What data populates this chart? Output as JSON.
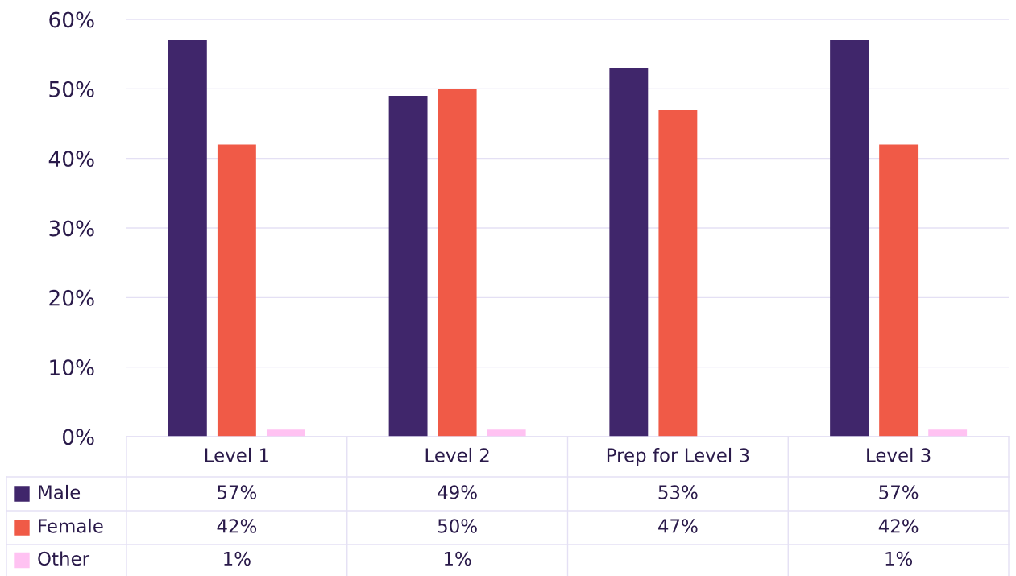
{
  "chart_data": {
    "type": "bar",
    "categories": [
      "Level 1",
      "Level 2",
      "Prep for Level 3",
      "Level 3"
    ],
    "series": [
      {
        "name": "Male",
        "color": "#40266b",
        "values": [
          57,
          49,
          53,
          57
        ],
        "value_labels": [
          "57%",
          "49%",
          "53%",
          "57%"
        ]
      },
      {
        "name": "Female",
        "color": "#f05a47",
        "values": [
          42,
          50,
          47,
          42
        ],
        "value_labels": [
          "42%",
          "50%",
          "47%",
          "42%"
        ]
      },
      {
        "name": "Other",
        "color": "#ffc2f2",
        "values": [
          1,
          1,
          null,
          1
        ],
        "value_labels": [
          "1%",
          "1%",
          null,
          "1%"
        ]
      }
    ],
    "ylim": [
      0,
      60
    ],
    "yticks": [
      {
        "value": 0,
        "label": "0%"
      },
      {
        "value": 10,
        "label": "10%"
      },
      {
        "value": 20,
        "label": "20%"
      },
      {
        "value": 30,
        "label": "30%"
      },
      {
        "value": 40,
        "label": "40%"
      },
      {
        "value": 50,
        "label": "50%"
      },
      {
        "value": 60,
        "label": "60%"
      }
    ],
    "grid": "y",
    "legend": "bottom"
  }
}
